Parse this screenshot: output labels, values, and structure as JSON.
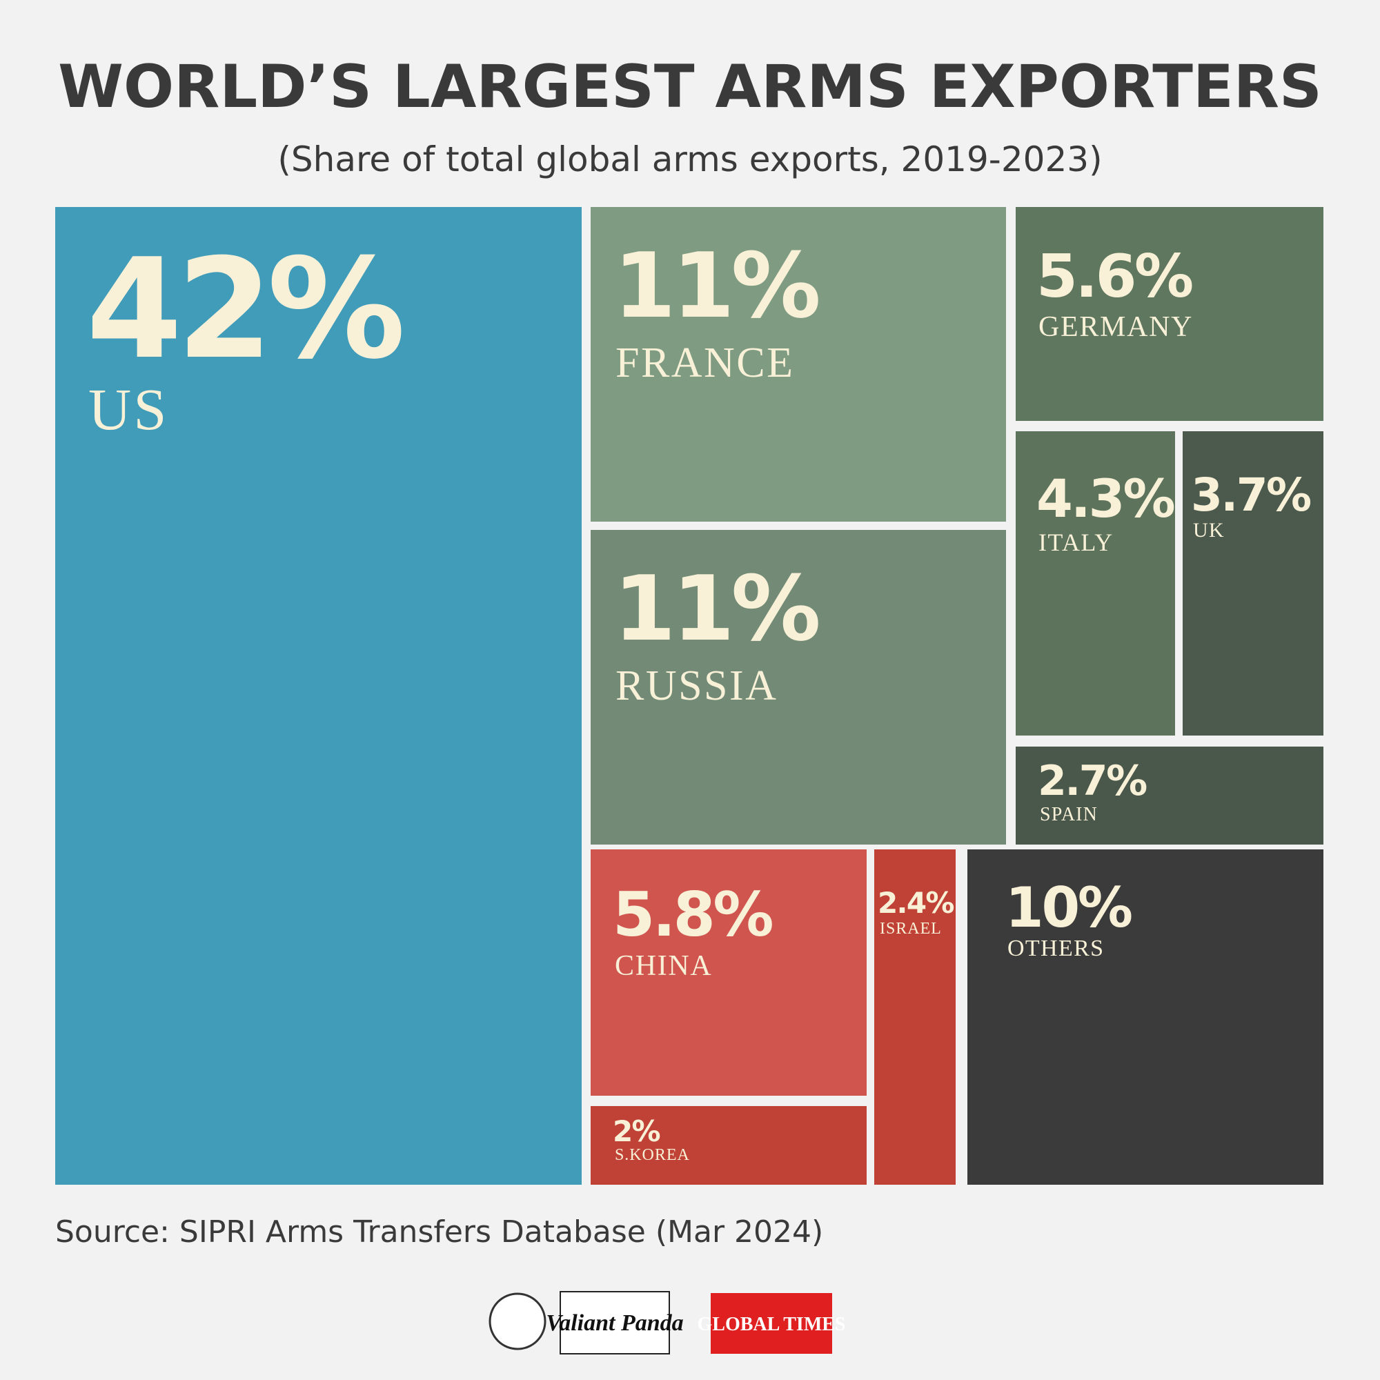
{
  "chart_data": {
    "type": "treemap",
    "title": "WORLD’S LARGEST ARMS EXPORTERS",
    "subtitle": "(Share of total global arms exports, 2019-2023)",
    "source": "Source: SIPRI Arms Transfers Database (Mar 2024)",
    "logos": [
      "Valiant Panda",
      "GLOBAL TIMES"
    ],
    "categories": [
      "US",
      "FRANCE",
      "RUSSIA",
      "GERMANY",
      "ITALY",
      "UK",
      "SPAIN",
      "CHINA",
      "ISRAEL",
      "OTHERS",
      "S.KOREA"
    ],
    "values": [
      42,
      11,
      11,
      5.6,
      4.3,
      3.7,
      2.7,
      5.8,
      2.4,
      10,
      2
    ],
    "value_labels": [
      "42%",
      "11%",
      "11%",
      "5.6%",
      "4.3%",
      "3.7%",
      "2.7%",
      "5.8%",
      "2.4%",
      "10%",
      "2%"
    ],
    "colors": [
      "#409cb9",
      "#7f9c82",
      "#738b76",
      "#60775f",
      "#5d735c",
      "#4b5a4d",
      "#4a574b",
      "#d0554e",
      "#c04236",
      "#3b3b3b",
      "#c04236"
    ]
  }
}
